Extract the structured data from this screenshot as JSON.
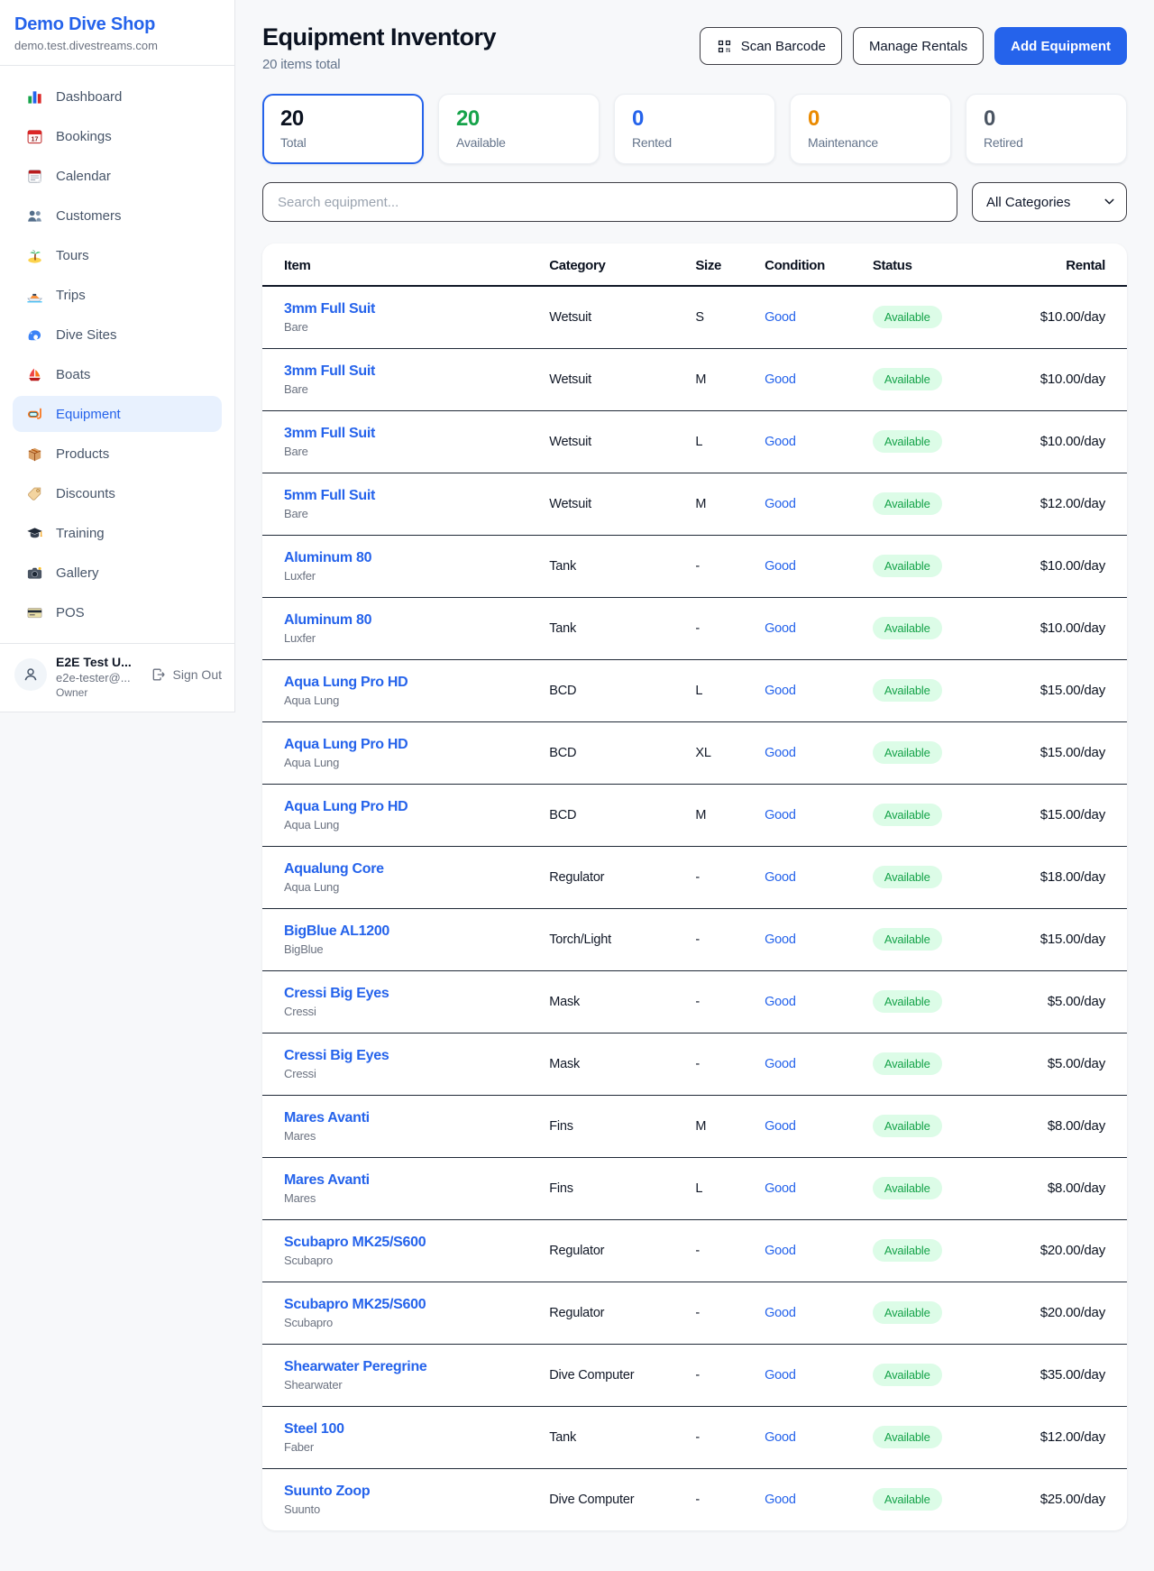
{
  "sidebar": {
    "brand": {
      "name": "Demo Dive Shop",
      "domain": "demo.test.divestreams.com"
    },
    "items": [
      {
        "icon": "bar-chart-icon",
        "label": "Dashboard",
        "active": false
      },
      {
        "icon": "calendar-date-icon",
        "label": "Bookings",
        "active": false
      },
      {
        "icon": "calendar-pad-icon",
        "label": "Calendar",
        "active": false
      },
      {
        "icon": "users-icon",
        "label": "Customers",
        "active": false
      },
      {
        "icon": "island-icon",
        "label": "Tours",
        "active": false
      },
      {
        "icon": "speedboat-icon",
        "label": "Trips",
        "active": false
      },
      {
        "icon": "wave-icon",
        "label": "Dive Sites",
        "active": false
      },
      {
        "icon": "sailboat-icon",
        "label": "Boats",
        "active": false
      },
      {
        "icon": "dive-mask-icon",
        "label": "Equipment",
        "active": true
      },
      {
        "icon": "package-icon",
        "label": "Products",
        "active": false
      },
      {
        "icon": "tag-icon",
        "label": "Discounts",
        "active": false
      },
      {
        "icon": "grad-cap-icon",
        "label": "Training",
        "active": false
      },
      {
        "icon": "camera-icon",
        "label": "Gallery",
        "active": false
      },
      {
        "icon": "credit-card-icon",
        "label": "POS",
        "active": false
      }
    ],
    "user": {
      "name": "E2E Test U...",
      "email": "e2e-tester@...",
      "role": "Owner",
      "sign_out_label": "Sign Out"
    }
  },
  "header": {
    "title": "Equipment Inventory",
    "subtitle": "20 items total",
    "scan_barcode_label": "Scan Barcode",
    "manage_rentals_label": "Manage Rentals",
    "add_equipment_label": "Add Equipment"
  },
  "stats": [
    {
      "value": "20",
      "label": "Total",
      "color": "#0b1220",
      "active": true
    },
    {
      "value": "20",
      "label": "Available",
      "color": "#16a34a",
      "active": false
    },
    {
      "value": "0",
      "label": "Rented",
      "color": "#2563eb",
      "active": false
    },
    {
      "value": "0",
      "label": "Maintenance",
      "color": "#ea8a00",
      "active": false
    },
    {
      "value": "0",
      "label": "Retired",
      "color": "#4b5563",
      "active": false
    }
  ],
  "filters": {
    "search_placeholder": "Search equipment...",
    "category_selected": "All Categories"
  },
  "table": {
    "columns": [
      "Item",
      "Category",
      "Size",
      "Condition",
      "Status",
      "Rental"
    ],
    "rows": [
      {
        "name": "3mm Full Suit",
        "brand": "Bare",
        "category": "Wetsuit",
        "size": "S",
        "condition": "Good",
        "status": "Available",
        "rental": "$10.00/day"
      },
      {
        "name": "3mm Full Suit",
        "brand": "Bare",
        "category": "Wetsuit",
        "size": "M",
        "condition": "Good",
        "status": "Available",
        "rental": "$10.00/day"
      },
      {
        "name": "3mm Full Suit",
        "brand": "Bare",
        "category": "Wetsuit",
        "size": "L",
        "condition": "Good",
        "status": "Available",
        "rental": "$10.00/day"
      },
      {
        "name": "5mm Full Suit",
        "brand": "Bare",
        "category": "Wetsuit",
        "size": "M",
        "condition": "Good",
        "status": "Available",
        "rental": "$12.00/day"
      },
      {
        "name": "Aluminum 80",
        "brand": "Luxfer",
        "category": "Tank",
        "size": "-",
        "condition": "Good",
        "status": "Available",
        "rental": "$10.00/day"
      },
      {
        "name": "Aluminum 80",
        "brand": "Luxfer",
        "category": "Tank",
        "size": "-",
        "condition": "Good",
        "status": "Available",
        "rental": "$10.00/day"
      },
      {
        "name": "Aqua Lung Pro HD",
        "brand": "Aqua Lung",
        "category": "BCD",
        "size": "L",
        "condition": "Good",
        "status": "Available",
        "rental": "$15.00/day"
      },
      {
        "name": "Aqua Lung Pro HD",
        "brand": "Aqua Lung",
        "category": "BCD",
        "size": "XL",
        "condition": "Good",
        "status": "Available",
        "rental": "$15.00/day"
      },
      {
        "name": "Aqua Lung Pro HD",
        "brand": "Aqua Lung",
        "category": "BCD",
        "size": "M",
        "condition": "Good",
        "status": "Available",
        "rental": "$15.00/day"
      },
      {
        "name": "Aqualung Core",
        "brand": "Aqua Lung",
        "category": "Regulator",
        "size": "-",
        "condition": "Good",
        "status": "Available",
        "rental": "$18.00/day"
      },
      {
        "name": "BigBlue AL1200",
        "brand": "BigBlue",
        "category": "Torch/Light",
        "size": "-",
        "condition": "Good",
        "status": "Available",
        "rental": "$15.00/day"
      },
      {
        "name": "Cressi Big Eyes",
        "brand": "Cressi",
        "category": "Mask",
        "size": "-",
        "condition": "Good",
        "status": "Available",
        "rental": "$5.00/day"
      },
      {
        "name": "Cressi Big Eyes",
        "brand": "Cressi",
        "category": "Mask",
        "size": "-",
        "condition": "Good",
        "status": "Available",
        "rental": "$5.00/day"
      },
      {
        "name": "Mares Avanti",
        "brand": "Mares",
        "category": "Fins",
        "size": "M",
        "condition": "Good",
        "status": "Available",
        "rental": "$8.00/day"
      },
      {
        "name": "Mares Avanti",
        "brand": "Mares",
        "category": "Fins",
        "size": "L",
        "condition": "Good",
        "status": "Available",
        "rental": "$8.00/day"
      },
      {
        "name": "Scubapro MK25/S600",
        "brand": "Scubapro",
        "category": "Regulator",
        "size": "-",
        "condition": "Good",
        "status": "Available",
        "rental": "$20.00/day"
      },
      {
        "name": "Scubapro MK25/S600",
        "brand": "Scubapro",
        "category": "Regulator",
        "size": "-",
        "condition": "Good",
        "status": "Available",
        "rental": "$20.00/day"
      },
      {
        "name": "Shearwater Peregrine",
        "brand": "Shearwater",
        "category": "Dive Computer",
        "size": "-",
        "condition": "Good",
        "status": "Available",
        "rental": "$35.00/day"
      },
      {
        "name": "Steel 100",
        "brand": "Faber",
        "category": "Tank",
        "size": "-",
        "condition": "Good",
        "status": "Available",
        "rental": "$12.00/day"
      },
      {
        "name": "Suunto Zoop",
        "brand": "Suunto",
        "category": "Dive Computer",
        "size": "-",
        "condition": "Good",
        "status": "Available",
        "rental": "$25.00/day"
      }
    ]
  },
  "colors": {
    "accent_blue": "#2563eb",
    "available_green": "#16a34a",
    "maintenance_orange": "#ea8a00",
    "badge_bg": "#dcfce7",
    "page_bg": "#f7f8fa"
  }
}
